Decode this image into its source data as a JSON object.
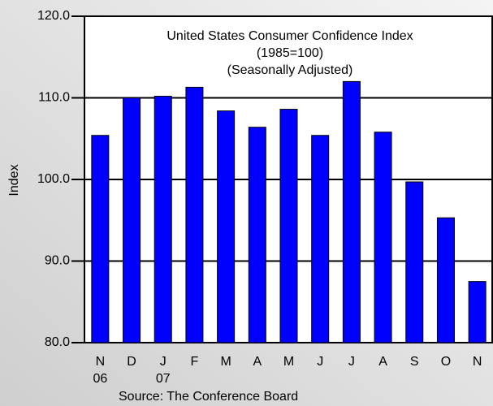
{
  "chart_data": {
    "type": "bar",
    "title": "United States Consumer Confidence Index",
    "subtitle": [
      "(1985=100)",
      "(Seasonally Adjusted)"
    ],
    "y_label": "Index",
    "source": "Source: The Conference Board",
    "categories": [
      "N",
      "D",
      "J",
      "F",
      "M",
      "A",
      "M",
      "J",
      "J",
      "A",
      "S",
      "O",
      "N"
    ],
    "category_sublabels": [
      "06",
      null,
      "07",
      null,
      null,
      null,
      null,
      null,
      null,
      null,
      null,
      null,
      null
    ],
    "values": [
      105.4,
      110.0,
      110.2,
      111.3,
      108.4,
      106.4,
      108.6,
      105.4,
      112.0,
      105.8,
      99.7,
      95.3,
      87.5
    ],
    "color": "#0000ff",
    "ylim": [
      80,
      120
    ],
    "yticks": [
      {
        "value": 80,
        "label": "80.0"
      },
      {
        "value": 90,
        "label": "90.0"
      },
      {
        "value": 100,
        "label": "100.0"
      },
      {
        "value": 110,
        "label": "110.0"
      },
      {
        "value": 120,
        "label": "120.0"
      }
    ],
    "grid": true
  }
}
